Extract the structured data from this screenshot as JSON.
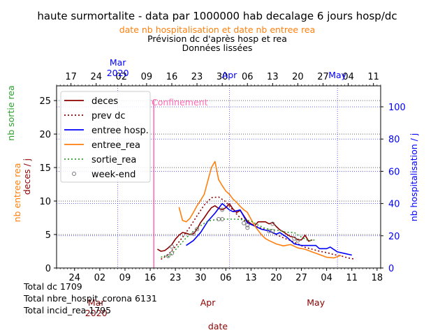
{
  "title": "haute surmortalite - data par 1000000 hab decalage 6 jours hosp/dc",
  "subtitle_orange": "date nb hospitalisation et date nb entree rea",
  "subtitle_line2": "Prévision dc d'après hosp et rea",
  "subtitle_line3": "Données lissées",
  "totals": [
    "Total dc 1709",
    "Total nbre_hospit_corona 6131",
    "Total incid_rea 1795"
  ],
  "colors": {
    "deces": "#8b0000",
    "entree_hosp": "#0000ff",
    "entree_rea": "#ff7f0e",
    "sortie_rea": "#2ca02c",
    "confinement": "#ff69b4"
  },
  "chart_data": {
    "type": "line",
    "bottom_axis": {
      "ticks": [
        {
          "label": "24",
          "date": "2020-02-24"
        },
        {
          "label": "02",
          "date": "2020-03-02"
        },
        {
          "label": "09",
          "date": "2020-03-09"
        },
        {
          "label": "16",
          "date": "2020-03-16"
        },
        {
          "label": "23",
          "date": "2020-03-23"
        },
        {
          "label": "30",
          "date": "2020-03-30"
        },
        {
          "label": "06",
          "date": "2020-04-06"
        },
        {
          "label": "13",
          "date": "2020-04-13"
        },
        {
          "label": "20",
          "date": "2020-04-20"
        },
        {
          "label": "27",
          "date": "2020-04-27"
        },
        {
          "label": "04",
          "date": "2020-05-04"
        },
        {
          "label": "11",
          "date": "2020-05-11"
        },
        {
          "label": "18",
          "date": "2020-05-18"
        }
      ],
      "month_labels": [
        {
          "label": "Mar\n2020",
          "date": "2020-03-01"
        },
        {
          "label": "Apr",
          "date": "2020-04-01"
        },
        {
          "label": "May",
          "date": "2020-05-01"
        }
      ],
      "xlabel": "date",
      "xlim": [
        "2020-02-19",
        "2020-05-19"
      ]
    },
    "top_axis": {
      "ticks": [
        {
          "label": "17",
          "date": "2020-02-17"
        },
        {
          "label": "24",
          "date": "2020-02-24"
        },
        {
          "label": "02",
          "date": "2020-03-02"
        },
        {
          "label": "09",
          "date": "2020-03-09"
        },
        {
          "label": "16",
          "date": "2020-03-16"
        },
        {
          "label": "23",
          "date": "2020-03-23"
        },
        {
          "label": "30",
          "date": "2020-03-30"
        },
        {
          "label": "06",
          "date": "2020-04-06"
        },
        {
          "label": "13",
          "date": "2020-04-13"
        },
        {
          "label": "20",
          "date": "2020-04-20"
        },
        {
          "label": "27",
          "date": "2020-04-27"
        },
        {
          "label": "04",
          "date": "2020-05-04"
        },
        {
          "label": "11",
          "date": "2020-05-11"
        }
      ],
      "month_labels": [
        {
          "label": "Mar\n2020",
          "date": "2020-03-01"
        },
        {
          "label": "Apr",
          "date": "2020-04-01"
        },
        {
          "label": "May",
          "date": "2020-05-01"
        }
      ],
      "xlim": [
        "2020-02-13",
        "2020-05-13"
      ]
    },
    "left_axis": {
      "ylim": [
        0,
        27.2
      ],
      "ticks": [
        0,
        5,
        10,
        15,
        20,
        25
      ],
      "label_green": "nb sortie rea",
      "label_orange": "nb entree rea",
      "label_darkred": "deces / j"
    },
    "right_axis": {
      "ylim": [
        0,
        113
      ],
      "ticks": [
        0,
        20,
        40,
        60,
        80,
        100
      ],
      "label": "nb hospitalisation / j"
    },
    "annotation": {
      "text": "Confinement",
      "date": "2020-03-17"
    },
    "legend": {
      "placement": "top-left",
      "entries": [
        "deces",
        "prev dc",
        "entree hosp.",
        "entree_rea",
        "sortie_rea",
        "week-end"
      ]
    },
    "series": [
      {
        "name": "deces",
        "axis": "bottom-left",
        "style": "solid",
        "points": [
          [
            "2020-03-18",
            2.8
          ],
          [
            "2020-03-19",
            2.5
          ],
          [
            "2020-03-20",
            2.6
          ],
          [
            "2020-03-21",
            3.0
          ],
          [
            "2020-03-22",
            3.5
          ],
          [
            "2020-03-23",
            4.3
          ],
          [
            "2020-03-24",
            4.9
          ],
          [
            "2020-03-25",
            5.3
          ],
          [
            "2020-03-26",
            5.2
          ],
          [
            "2020-03-27",
            5.0
          ],
          [
            "2020-03-28",
            5.1
          ],
          [
            "2020-03-29",
            5.8
          ],
          [
            "2020-03-30",
            6.8
          ],
          [
            "2020-03-31",
            7.5
          ],
          [
            "2020-04-01",
            8.3
          ],
          [
            "2020-04-02",
            9.0
          ],
          [
            "2020-04-03",
            9.3
          ],
          [
            "2020-04-04",
            8.9
          ],
          [
            "2020-04-05",
            8.7
          ],
          [
            "2020-04-06",
            9.0
          ],
          [
            "2020-04-07",
            9.6
          ],
          [
            "2020-04-08",
            8.8
          ],
          [
            "2020-04-09",
            8.3
          ],
          [
            "2020-04-10",
            8.6
          ],
          [
            "2020-04-11",
            7.8
          ],
          [
            "2020-04-12",
            7.0
          ],
          [
            "2020-04-13",
            6.6
          ],
          [
            "2020-04-14",
            6.3
          ],
          [
            "2020-04-15",
            6.9
          ],
          [
            "2020-04-16",
            6.9
          ],
          [
            "2020-04-17",
            6.9
          ],
          [
            "2020-04-18",
            6.6
          ],
          [
            "2020-04-19",
            6.8
          ],
          [
            "2020-04-20",
            6.2
          ],
          [
            "2020-04-21",
            5.7
          ],
          [
            "2020-04-22",
            5.4
          ],
          [
            "2020-04-23",
            5.0
          ],
          [
            "2020-04-24",
            4.7
          ],
          [
            "2020-04-25",
            4.6
          ],
          [
            "2020-04-26",
            4.2
          ],
          [
            "2020-04-27",
            4.2
          ],
          [
            "2020-04-28",
            4.9
          ],
          [
            "2020-04-29",
            4.0
          ],
          [
            "2020-04-30",
            4.2
          ]
        ]
      },
      {
        "name": "prev dc",
        "axis": "bottom-left",
        "style": "dotted",
        "points": [
          [
            "2020-03-19",
            1.3
          ],
          [
            "2020-03-21",
            2.0
          ],
          [
            "2020-03-23",
            3.2
          ],
          [
            "2020-03-25",
            4.6
          ],
          [
            "2020-03-27",
            6.1
          ],
          [
            "2020-03-29",
            7.8
          ],
          [
            "2020-03-31",
            9.4
          ],
          [
            "2020-04-02",
            10.5
          ],
          [
            "2020-04-04",
            10.6
          ],
          [
            "2020-04-06",
            9.9
          ],
          [
            "2020-04-08",
            8.6
          ],
          [
            "2020-04-10",
            7.5
          ],
          [
            "2020-04-12",
            6.8
          ],
          [
            "2020-04-14",
            6.3
          ],
          [
            "2020-04-16",
            5.9
          ],
          [
            "2020-04-18",
            5.5
          ],
          [
            "2020-04-20",
            5.0
          ],
          [
            "2020-04-22",
            4.5
          ],
          [
            "2020-04-24",
            4.1
          ],
          [
            "2020-04-26",
            3.6
          ],
          [
            "2020-04-28",
            3.1
          ],
          [
            "2020-04-30",
            2.8
          ],
          [
            "2020-05-02",
            2.5
          ],
          [
            "2020-05-04",
            2.3
          ],
          [
            "2020-05-06",
            2.0
          ],
          [
            "2020-05-08",
            1.8
          ],
          [
            "2020-05-10",
            1.5
          ],
          [
            "2020-05-12",
            1.3
          ]
        ]
      },
      {
        "name": "entree hosp.",
        "axis": "top-right",
        "style": "solid",
        "points": [
          [
            "2020-03-20",
            14
          ],
          [
            "2020-03-22",
            17
          ],
          [
            "2020-03-24",
            22
          ],
          [
            "2020-03-26",
            29
          ],
          [
            "2020-03-28",
            34
          ],
          [
            "2020-03-30",
            40
          ],
          [
            "2020-04-01",
            36
          ],
          [
            "2020-04-02",
            35
          ],
          [
            "2020-04-04",
            36
          ],
          [
            "2020-04-06",
            28
          ],
          [
            "2020-04-08",
            26
          ],
          [
            "2020-04-10",
            24
          ],
          [
            "2020-04-12",
            23
          ],
          [
            "2020-04-13",
            22
          ],
          [
            "2020-04-14",
            21
          ],
          [
            "2020-04-15",
            22
          ],
          [
            "2020-04-17",
            19
          ],
          [
            "2020-04-18",
            17
          ],
          [
            "2020-04-19",
            15
          ],
          [
            "2020-04-21",
            14
          ],
          [
            "2020-04-23",
            14
          ],
          [
            "2020-04-25",
            14
          ],
          [
            "2020-04-26",
            12
          ],
          [
            "2020-04-28",
            12
          ],
          [
            "2020-04-29",
            13
          ],
          [
            "2020-05-01",
            10
          ],
          [
            "2020-05-03",
            9
          ],
          [
            "2020-05-05",
            8
          ]
        ]
      },
      {
        "name": "entree_rea",
        "axis": "bottom-left",
        "style": "solid",
        "points": [
          [
            "2020-03-24",
            9.1
          ],
          [
            "2020-03-25",
            7.1
          ],
          [
            "2020-03-26",
            6.9
          ],
          [
            "2020-03-27",
            7.4
          ],
          [
            "2020-03-28",
            8.3
          ],
          [
            "2020-03-29",
            9.3
          ],
          [
            "2020-03-30",
            10.1
          ],
          [
            "2020-03-31",
            11.0
          ],
          [
            "2020-04-01",
            13.0
          ],
          [
            "2020-04-02",
            15.0
          ],
          [
            "2020-04-03",
            15.9
          ],
          [
            "2020-04-04",
            13.2
          ],
          [
            "2020-04-05",
            12.3
          ],
          [
            "2020-04-06",
            11.5
          ],
          [
            "2020-04-07",
            11.0
          ],
          [
            "2020-04-08",
            10.3
          ],
          [
            "2020-04-09",
            9.8
          ],
          [
            "2020-04-10",
            9.2
          ],
          [
            "2020-04-11",
            8.7
          ],
          [
            "2020-04-12",
            8.3
          ],
          [
            "2020-04-13",
            7.3
          ],
          [
            "2020-04-14",
            6.3
          ],
          [
            "2020-04-15",
            5.6
          ],
          [
            "2020-04-16",
            4.9
          ],
          [
            "2020-04-17",
            4.4
          ],
          [
            "2020-04-18",
            4.1
          ],
          [
            "2020-04-20",
            3.6
          ],
          [
            "2020-04-22",
            3.3
          ],
          [
            "2020-04-24",
            3.5
          ],
          [
            "2020-04-26",
            3.0
          ],
          [
            "2020-04-28",
            2.8
          ],
          [
            "2020-04-30",
            2.4
          ],
          [
            "2020-05-02",
            2.0
          ],
          [
            "2020-05-04",
            1.6
          ],
          [
            "2020-05-06",
            1.5
          ],
          [
            "2020-05-08",
            1.9
          ]
        ]
      },
      {
        "name": "sortie_rea",
        "axis": "bottom-left",
        "style": "dotted",
        "points": [
          [
            "2020-03-19",
            1.6
          ],
          [
            "2020-03-20",
            1.8
          ],
          [
            "2020-03-21",
            1.7
          ],
          [
            "2020-03-22",
            2.1
          ],
          [
            "2020-03-24",
            3.3
          ],
          [
            "2020-03-26",
            4.5
          ],
          [
            "2020-03-28",
            5.5
          ],
          [
            "2020-03-30",
            6.3
          ],
          [
            "2020-04-01",
            7.0
          ],
          [
            "2020-04-03",
            7.2
          ],
          [
            "2020-04-05",
            7.3
          ],
          [
            "2020-04-07",
            7.3
          ],
          [
            "2020-04-09",
            7.3
          ],
          [
            "2020-04-11",
            7.2
          ],
          [
            "2020-04-13",
            7.0
          ],
          [
            "2020-04-15",
            6.4
          ],
          [
            "2020-04-17",
            5.9
          ],
          [
            "2020-04-19",
            5.7
          ],
          [
            "2020-04-21",
            5.6
          ],
          [
            "2020-04-23",
            5.3
          ],
          [
            "2020-04-25",
            5.3
          ],
          [
            "2020-04-27",
            4.6
          ],
          [
            "2020-04-29",
            4.1
          ],
          [
            "2020-05-01",
            4.2
          ]
        ]
      }
    ],
    "weekend_markers": [
      {
        "date": "2020-03-21",
        "value": 1.8
      },
      {
        "date": "2020-03-22",
        "value": 2.2
      },
      {
        "date": "2020-03-22",
        "value": 3.2
      },
      {
        "date": "2020-03-28",
        "value": 5.1
      },
      {
        "date": "2020-03-29",
        "value": 5.8
      },
      {
        "date": "2020-04-04",
        "value": 7.3
      },
      {
        "date": "2020-04-05",
        "value": 7.3
      },
      {
        "date": "2020-04-05",
        "value": 8.7
      },
      {
        "date": "2020-04-11",
        "value": 6.7
      },
      {
        "date": "2020-04-12",
        "value": 6.0
      },
      {
        "date": "2020-04-12",
        "value": 6.4
      },
      {
        "date": "2020-04-18",
        "value": 5.5
      },
      {
        "date": "2020-04-19",
        "value": 5.5
      },
      {
        "date": "2020-04-19",
        "value": 6.6
      },
      {
        "date": "2020-04-25",
        "value": 4.4
      },
      {
        "date": "2020-04-26",
        "value": 4.1
      }
    ]
  }
}
